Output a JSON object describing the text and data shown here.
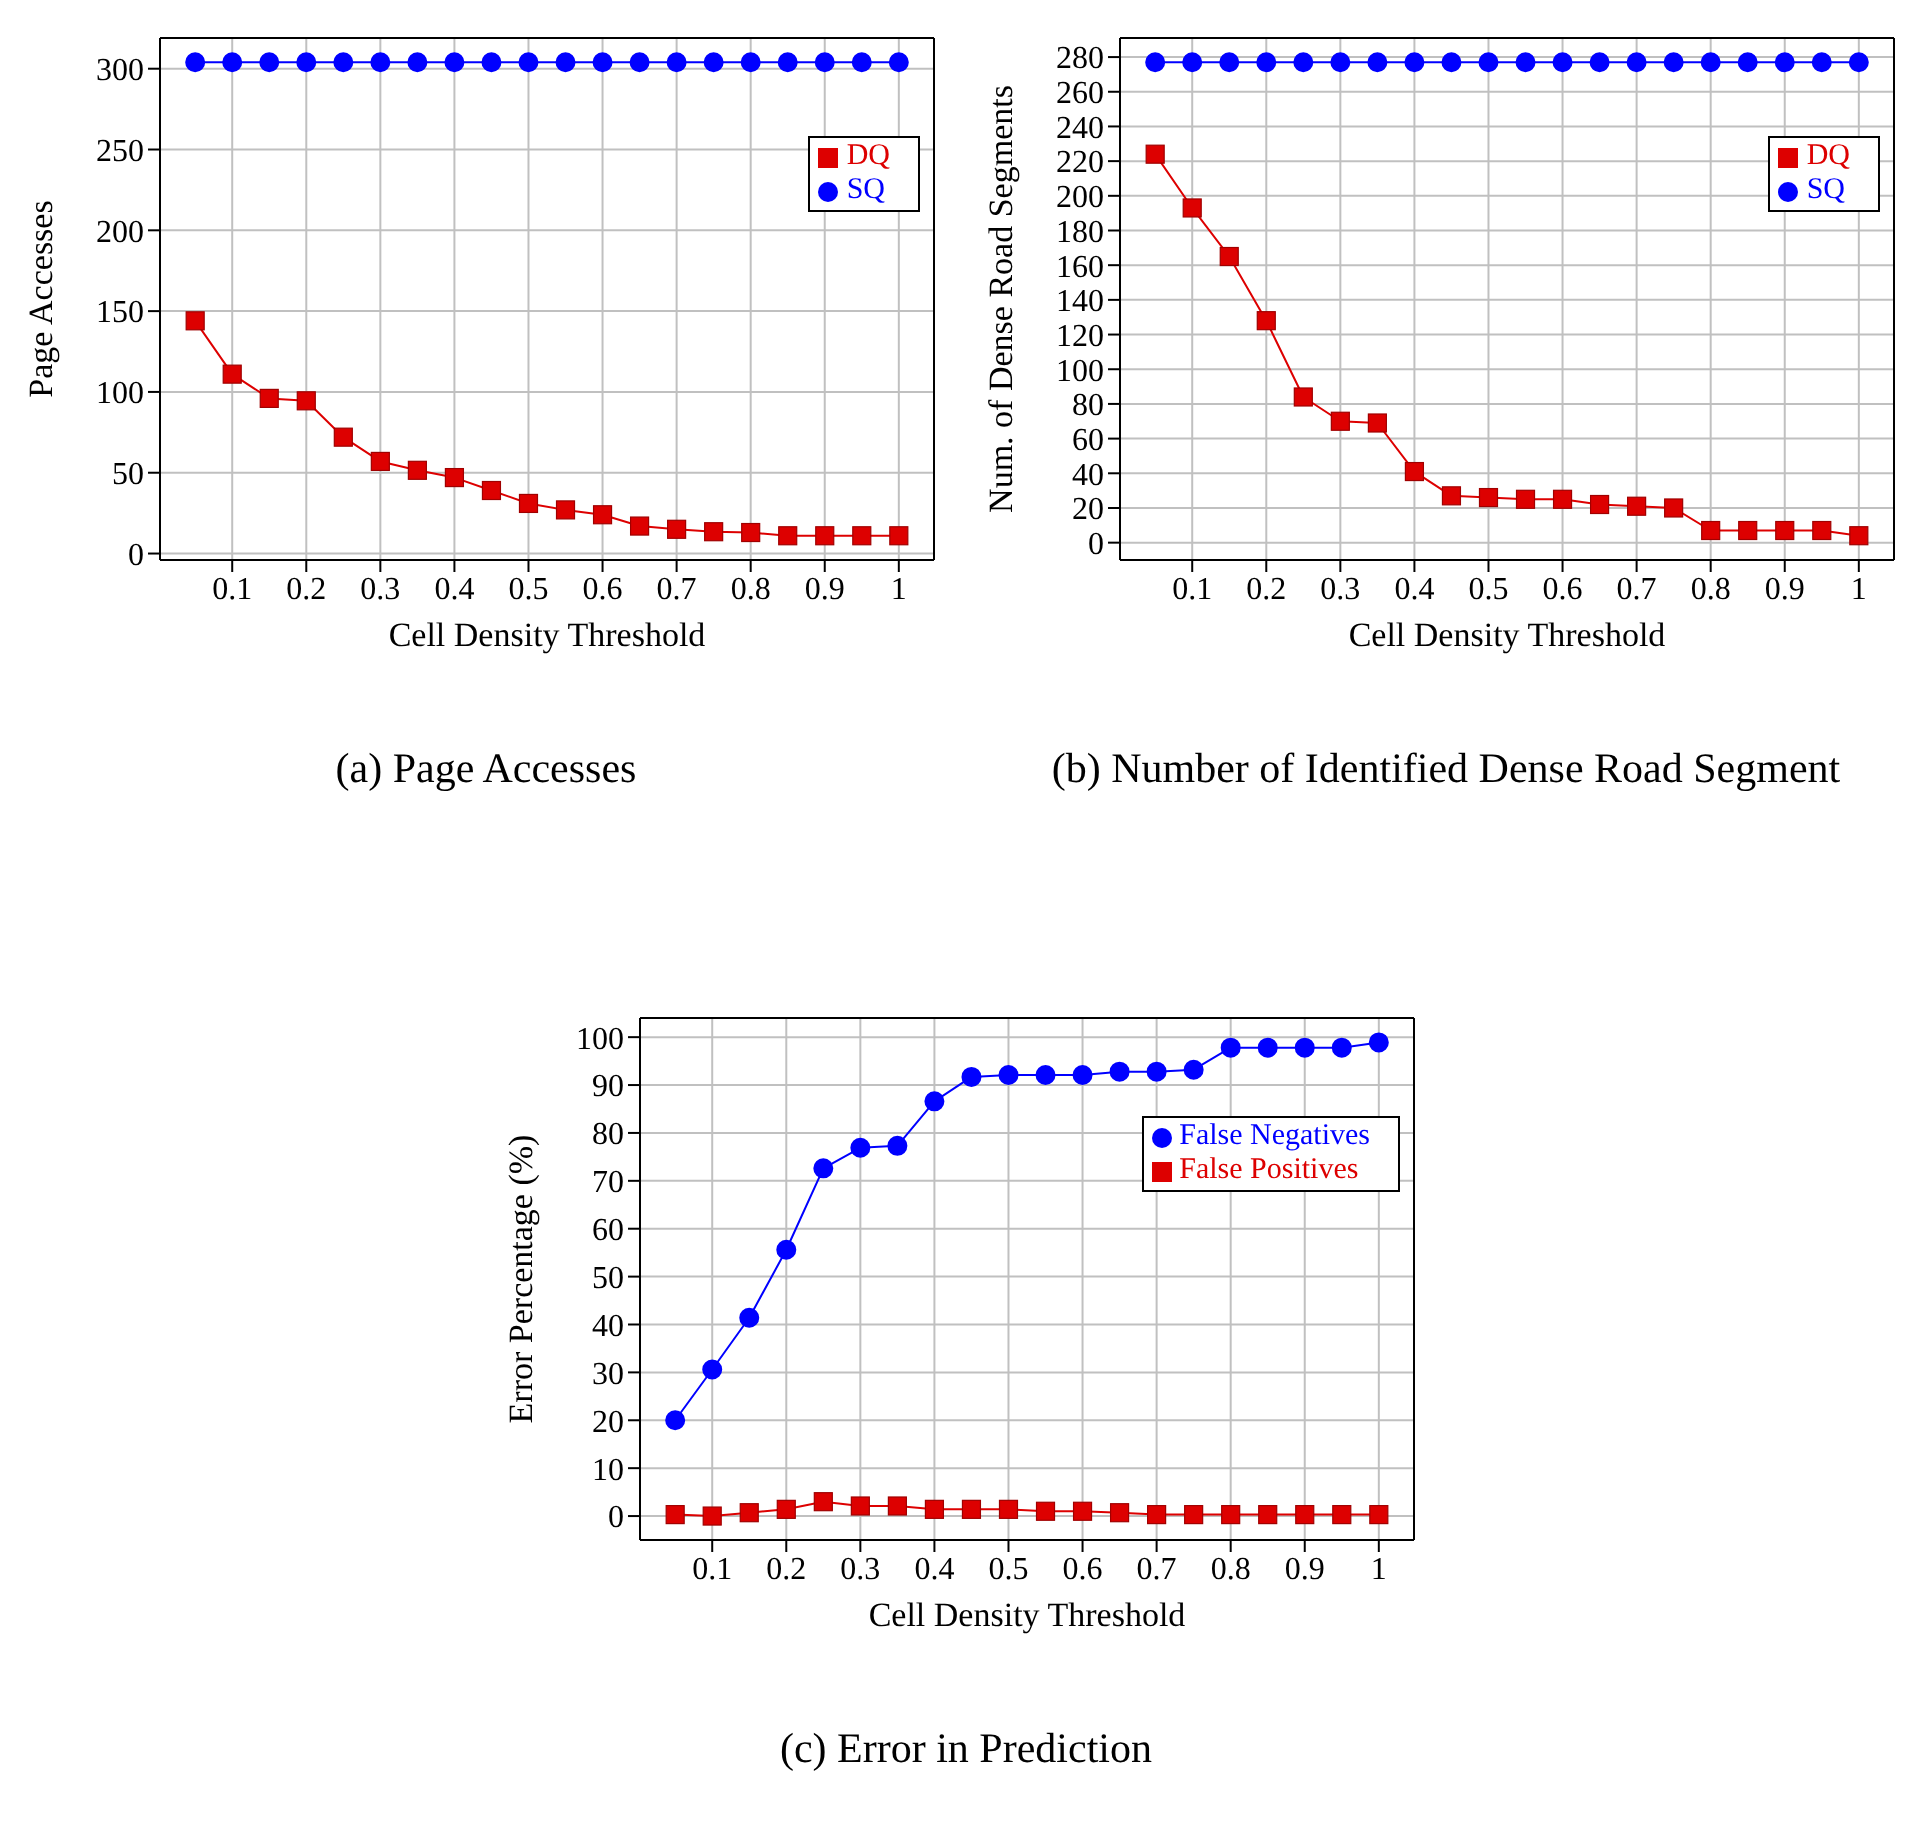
{
  "chart_data": [
    {
      "type": "line",
      "title": "(a) Page Accesses",
      "xlabel": "Cell Density Threshold",
      "ylabel": "Page Accesses",
      "x": [
        0.05,
        0.1,
        0.15,
        0.2,
        0.25,
        0.3,
        0.35,
        0.4,
        0.45,
        0.5,
        0.55,
        0.6,
        0.65,
        0.7,
        0.75,
        0.8,
        0.85,
        0.9,
        0.95,
        1
      ],
      "xlim": [
        0.0025,
        1.0475
      ],
      "xticks": [
        0.1,
        0.2,
        0.3,
        0.4,
        0.5,
        0.6,
        0.7,
        0.8,
        0.9,
        1
      ],
      "ylim": [
        -4,
        319
      ],
      "yticks": [
        0,
        50,
        100,
        150,
        200,
        250,
        300
      ],
      "grid": true,
      "legend": "top right",
      "series": [
        {
          "name": "SQ",
          "color": "#0000ff",
          "marker": "circle",
          "values": [
            304,
            304,
            304,
            304,
            304,
            304,
            304,
            304,
            304,
            304,
            304,
            304,
            304,
            304,
            304,
            304,
            304,
            304,
            304,
            304
          ]
        },
        {
          "name": "DQ",
          "color": "#dd0000",
          "marker": "square",
          "values": [
            144,
            111,
            96,
            94.5,
            72,
            57,
            51.5,
            47,
            39,
            31,
            27,
            24,
            17,
            15,
            13.5,
            13,
            11,
            11,
            11,
            11
          ]
        }
      ]
    },
    {
      "type": "line",
      "title": "(b) Number of Identified Dense Road Segment",
      "xlabel": "Cell Density Threshold",
      "ylabel": "Num. of Dense Road Segments",
      "x": [
        0.05,
        0.1,
        0.15,
        0.2,
        0.25,
        0.3,
        0.35,
        0.4,
        0.45,
        0.5,
        0.55,
        0.6,
        0.65,
        0.7,
        0.75,
        0.8,
        0.85,
        0.9,
        0.95,
        1
      ],
      "xlim": [
        0.0025,
        1.0475
      ],
      "xticks": [
        0.1,
        0.2,
        0.3,
        0.4,
        0.5,
        0.6,
        0.7,
        0.8,
        0.9,
        1
      ],
      "ylim": [
        -10,
        291
      ],
      "yticks": [
        0,
        20,
        40,
        60,
        80,
        100,
        120,
        140,
        160,
        180,
        200,
        220,
        240,
        260,
        280
      ],
      "grid": true,
      "legend": "top right",
      "series": [
        {
          "name": "SQ",
          "color": "#0000ff",
          "marker": "circle",
          "values": [
            277,
            277,
            277,
            277,
            277,
            277,
            277,
            277,
            277,
            277,
            277,
            277,
            277,
            277,
            277,
            277,
            277,
            277,
            277,
            277
          ]
        },
        {
          "name": "DQ",
          "color": "#dd0000",
          "marker": "square",
          "values": [
            224,
            193,
            165,
            128,
            84,
            70,
            69,
            41,
            27,
            26,
            25,
            25,
            22,
            21,
            20,
            7,
            7,
            7,
            7,
            4
          ]
        }
      ]
    },
    {
      "type": "line",
      "title": "(c) Error in Prediction",
      "xlabel": "Cell Density Threshold",
      "ylabel": "Error Percentage (%)",
      "x": [
        0.05,
        0.1,
        0.15,
        0.2,
        0.25,
        0.3,
        0.35,
        0.4,
        0.45,
        0.5,
        0.55,
        0.6,
        0.65,
        0.7,
        0.75,
        0.8,
        0.85,
        0.9,
        0.95,
        1
      ],
      "xlim": [
        0.0025,
        1.0475
      ],
      "xticks": [
        0.1,
        0.2,
        0.3,
        0.4,
        0.5,
        0.6,
        0.7,
        0.8,
        0.9,
        1
      ],
      "ylim": [
        -5,
        104
      ],
      "yticks": [
        0,
        10,
        20,
        30,
        40,
        50,
        60,
        70,
        80,
        90,
        100
      ],
      "grid": true,
      "legend": "top right",
      "series": [
        {
          "name": "False Negatives",
          "color": "#0000ff",
          "marker": "circle",
          "values": [
            20,
            30.6,
            41.4,
            55.6,
            72.6,
            76.9,
            77.3,
            86.6,
            91.7,
            92.1,
            92.1,
            92.1,
            92.8,
            92.8,
            93.2,
            97.8,
            97.8,
            97.8,
            97.8,
            98.9
          ]
        },
        {
          "name": "False Positives",
          "color": "#dd0000",
          "marker": "square",
          "values": [
            0.3,
            0,
            0.7,
            1.4,
            3,
            2.1,
            2.1,
            1.4,
            1.4,
            1.4,
            1,
            1,
            0.7,
            0.3,
            0.3,
            0.3,
            0.3,
            0.3,
            0.3,
            0.3
          ]
        }
      ]
    }
  ]
}
